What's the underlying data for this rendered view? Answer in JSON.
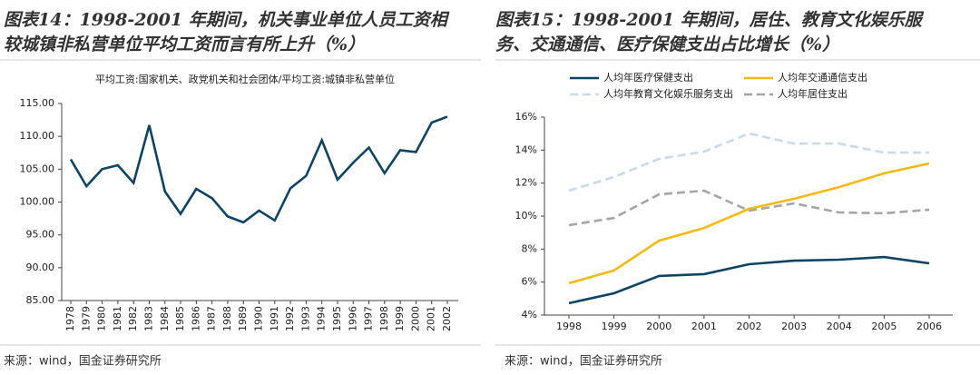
{
  "chart_data": [
    {
      "type": "line",
      "title": [
        "图表14：1998-2001 年期间，机关事业单位人员工资相",
        "较城镇非私营单位平均工资而言有所上升（%）"
      ],
      "subtitle": "平均工资:国家机关、政党机关和社会团体/平均工资:城镇非私营单位",
      "source": "来源：wind，国金证券研究所",
      "categories": [
        "1978",
        "1979",
        "1980",
        "1981",
        "1982",
        "1983",
        "1984",
        "1985",
        "1986",
        "1987",
        "1988",
        "1989",
        "1990",
        "1991",
        "1992",
        "1993",
        "1994",
        "1995",
        "1996",
        "1997",
        "1998",
        "1999",
        "2000",
        "2001",
        "2002"
      ],
      "series": [
        {
          "color": "#0e4466",
          "values": [
            106.5,
            102.4,
            105.0,
            105.6,
            102.9,
            111.7,
            101.6,
            98.2,
            102.0,
            100.6,
            97.8,
            96.9,
            98.7,
            97.2,
            102.1,
            104.0,
            109.4,
            103.4,
            106.0,
            108.3,
            104.4,
            107.9,
            107.6,
            112.1,
            113.0
          ]
        }
      ],
      "ylim": [
        85,
        115
      ],
      "yticks": [
        {
          "value": 85,
          "label": "85.00"
        },
        {
          "value": 90,
          "label": "90.00"
        },
        {
          "value": 95,
          "label": "95.00"
        },
        {
          "value": 100,
          "label": "100.00"
        },
        {
          "value": 105,
          "label": "105.00"
        },
        {
          "value": 110,
          "label": "110.00"
        },
        {
          "value": 115,
          "label": "115.00"
        }
      ]
    },
    {
      "type": "line",
      "title": [
        "图表15：1998-2001 年期间，居住、教育文化娱乐服",
        "务、交通通信、医疗保健支出占比增长（%）"
      ],
      "source": "来源：wind，国金证券研究所",
      "categories": [
        "1998",
        "1999",
        "2000",
        "2001",
        "2002",
        "2003",
        "2004",
        "2005",
        "2006"
      ],
      "series": [
        {
          "name": "人均年医疗保健支出",
          "color": "#0e4466",
          "style": "solid",
          "values": [
            4.72,
            5.32,
            6.37,
            6.48,
            7.08,
            7.3,
            7.36,
            7.52,
            7.14
          ]
        },
        {
          "name": "人均年交通通信支出",
          "color": "#f6b915",
          "style": "solid",
          "values": [
            5.93,
            6.7,
            8.51,
            9.28,
            10.44,
            11.05,
            11.76,
            12.59,
            13.19
          ]
        },
        {
          "name": "人均年教育文化娱乐服务支出",
          "color": "#c9dbec",
          "style": "dashed",
          "values": [
            11.54,
            12.37,
            13.47,
            13.91,
            15.01,
            14.4,
            14.4,
            13.85,
            13.85
          ]
        },
        {
          "name": "人均年居住支出",
          "color": "#a6a6a6",
          "style": "dashed",
          "values": [
            9.45,
            9.89,
            11.32,
            11.54,
            10.33,
            10.77,
            10.22,
            10.17,
            10.39
          ]
        }
      ],
      "ylim": [
        4,
        16
      ],
      "yticks": [
        {
          "value": 4,
          "label": "4%"
        },
        {
          "value": 6,
          "label": "6%"
        },
        {
          "value": 8,
          "label": "8%"
        },
        {
          "value": 10,
          "label": "10%"
        },
        {
          "value": 12,
          "label": "12%"
        },
        {
          "value": 14,
          "label": "14%"
        },
        {
          "value": 16,
          "label": "16%"
        }
      ]
    }
  ]
}
